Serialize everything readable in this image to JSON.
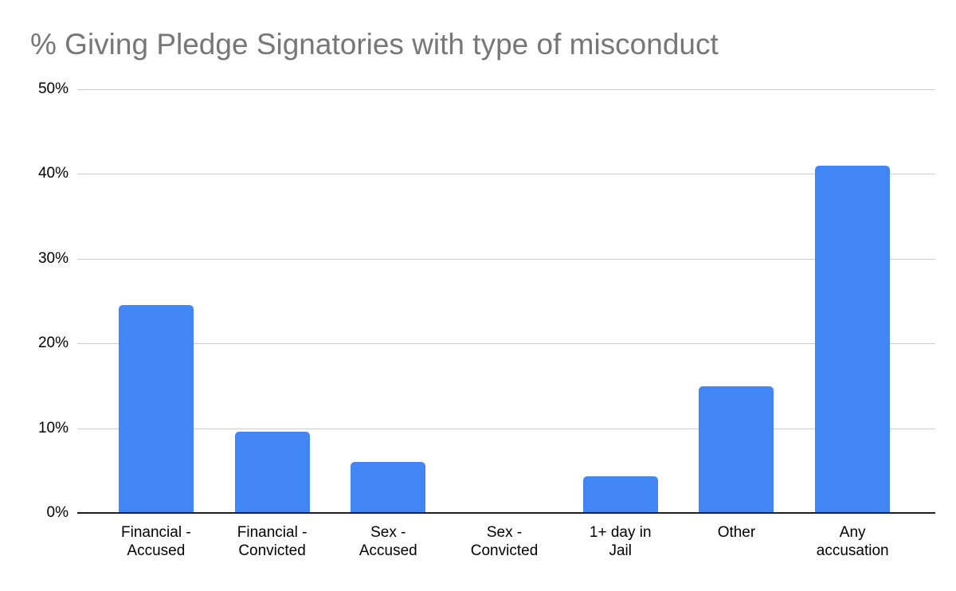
{
  "title": "% Giving Pledge Signatories with type of misconduct",
  "colors": {
    "bar": "#4285f4",
    "gridline": "#cccccc",
    "axis_line": "#212121",
    "title_text": "#777777",
    "tick_text": "#000000",
    "background": "#ffffff"
  },
  "chart_data": {
    "type": "bar",
    "title": "% Giving Pledge Signatories with type of misconduct",
    "categories": [
      "Financial - Accused",
      "Financial - Convicted",
      "Sex - Accused",
      "Sex - Convicted",
      "1+ day in Jail",
      "Other",
      "Any accusation"
    ],
    "category_slugs": [
      "financial-accused",
      "financial-convicted",
      "sex-accused",
      "sex-convicted",
      "1-plus-day-in-jail",
      "other",
      "any-accusation"
    ],
    "xtick_labels": [
      "Financial -\nAccused",
      "Financial -\nConvicted",
      "Sex -\nAccused",
      "Sex -\nConvicted",
      "1+ day in\nJail",
      "Other",
      "Any\naccusation"
    ],
    "values": [
      24.5,
      9.6,
      6.0,
      0.0,
      4.3,
      14.9,
      41.0
    ],
    "unit": "%",
    "xlabel": "",
    "ylabel": "",
    "ylim": [
      0,
      50
    ],
    "ytick_interval": 10,
    "ytick_labels": [
      "0%",
      "10%",
      "20%",
      "30%",
      "40%",
      "50%"
    ],
    "grid": true,
    "legend": "none"
  }
}
